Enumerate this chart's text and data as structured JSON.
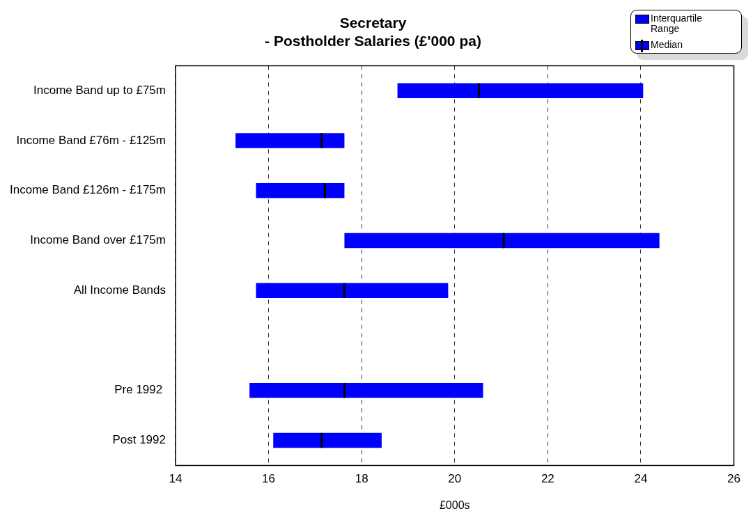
{
  "chart_data": {
    "type": "box",
    "orientation": "horizontal",
    "title": "Secretary\n- Postholder Salaries (£'000 pa)",
    "xlabel": "£000s",
    "categories": [
      "Income Band up to £75m",
      "Income Band £76m - £125m",
      "Income Band £126m - £175m",
      "Income Band over £175m",
      "All Income Bands",
      null,
      "Pre 1992 ",
      "Post 1992"
    ],
    "series": [
      {
        "name": "Interquartile Range",
        "color": "#0000ff",
        "boxes": [
          {
            "low": 18.77,
            "q1": 18.77,
            "median": 20.52,
            "q3": 24.05,
            "high": 24.05
          },
          {
            "low": 15.29,
            "q1": 15.29,
            "median": 17.14,
            "q3": 17.63,
            "high": 17.63
          },
          {
            "low": 15.73,
            "q1": 15.73,
            "median": 17.21,
            "q3": 17.63,
            "high": 17.63
          },
          {
            "low": 17.63,
            "q1": 17.63,
            "median": 21.05,
            "q3": 24.4,
            "high": 24.4
          },
          {
            "low": 15.73,
            "q1": 15.73,
            "median": 17.63,
            "q3": 19.86,
            "high": 19.86
          },
          null,
          {
            "low": 15.59,
            "q1": 15.59,
            "median": 17.63,
            "q3": 20.61,
            "high": 20.61
          },
          {
            "low": 16.1,
            "q1": 16.1,
            "median": 17.14,
            "q3": 18.43,
            "high": 18.43
          }
        ]
      }
    ],
    "annotations": [
      "Median"
    ],
    "xlim": [
      14,
      26
    ],
    "xticks": [
      14,
      16,
      18,
      20,
      22,
      24,
      26
    ],
    "grid": "x",
    "legend": "top right"
  }
}
